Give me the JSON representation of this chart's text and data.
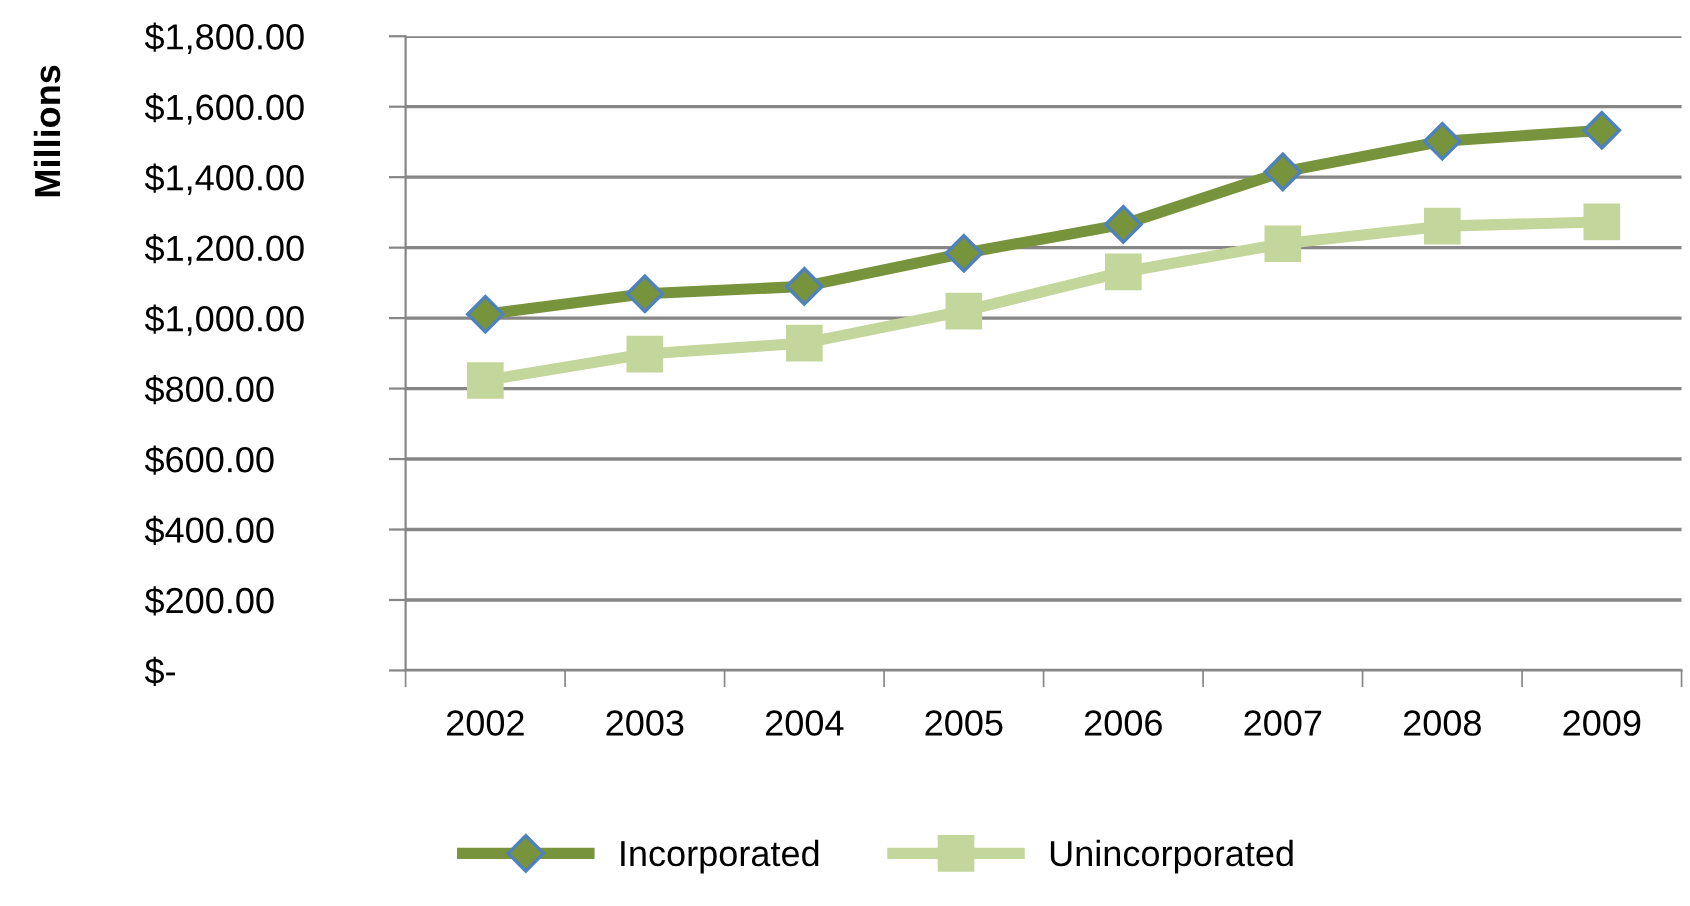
{
  "chart_data": {
    "type": "line",
    "ylabel": "Millions",
    "categories": [
      "2002",
      "2003",
      "2004",
      "2005",
      "2006",
      "2007",
      "2008",
      "2009"
    ],
    "series": [
      {
        "name": "Incorporated",
        "color": "#77933c",
        "marker": "diamond",
        "values": [
          1011,
          1069,
          1090,
          1184,
          1266,
          1415,
          1502,
          1533
        ]
      },
      {
        "name": "Unincorporated",
        "color": "#c3d69b",
        "marker": "square",
        "values": [
          823,
          898,
          929,
          1020,
          1131,
          1211,
          1261,
          1273
        ]
      }
    ],
    "ylim": [
      0,
      1800
    ],
    "yticks": [
      {
        "value": 0,
        "label": "$-"
      },
      {
        "value": 200,
        "label": "$200.00"
      },
      {
        "value": 400,
        "label": "$400.00"
      },
      {
        "value": 600,
        "label": "$600.00"
      },
      {
        "value": 800,
        "label": "$800.00"
      },
      {
        "value": 1000,
        "label": "$1,000.00"
      },
      {
        "value": 1200,
        "label": "$1,200.00"
      },
      {
        "value": 1400,
        "label": "$1,400.00"
      },
      {
        "value": 1600,
        "label": "$1,600.00"
      },
      {
        "value": 1800,
        "label": "$1,800.00"
      }
    ],
    "grid": "y",
    "legend": "bottom",
    "line_style": "solid"
  }
}
